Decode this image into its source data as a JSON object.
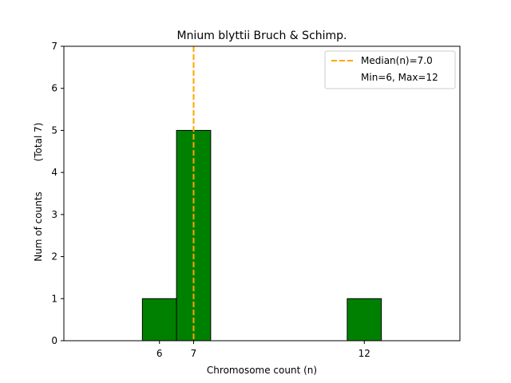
{
  "chart_data": {
    "type": "bar",
    "title": "Mnium blyttii Bruch & Schimp.",
    "xlabel": "Chromosome count (n)",
    "ylabel": "Num of counts",
    "ylabel_note": "(Total 7)",
    "xlim": [
      3.2,
      14.8
    ],
    "ylim": [
      0,
      7
    ],
    "x_ticks": [
      6,
      7,
      12
    ],
    "y_ticks": [
      0,
      1,
      2,
      3,
      4,
      5,
      6,
      7
    ],
    "bin_width": 1,
    "bars": [
      {
        "x": 6,
        "count": 1
      },
      {
        "x": 7,
        "count": 5
      },
      {
        "x": 12,
        "count": 1
      }
    ],
    "bar_color": "#008000",
    "bar_edge_color": "#000000",
    "median": 7.0,
    "median_color": "#ffa500",
    "legend": {
      "placement": "top-right",
      "entries": [
        "Median(n)=7.0",
        "Min=6, Max=12"
      ]
    }
  }
}
